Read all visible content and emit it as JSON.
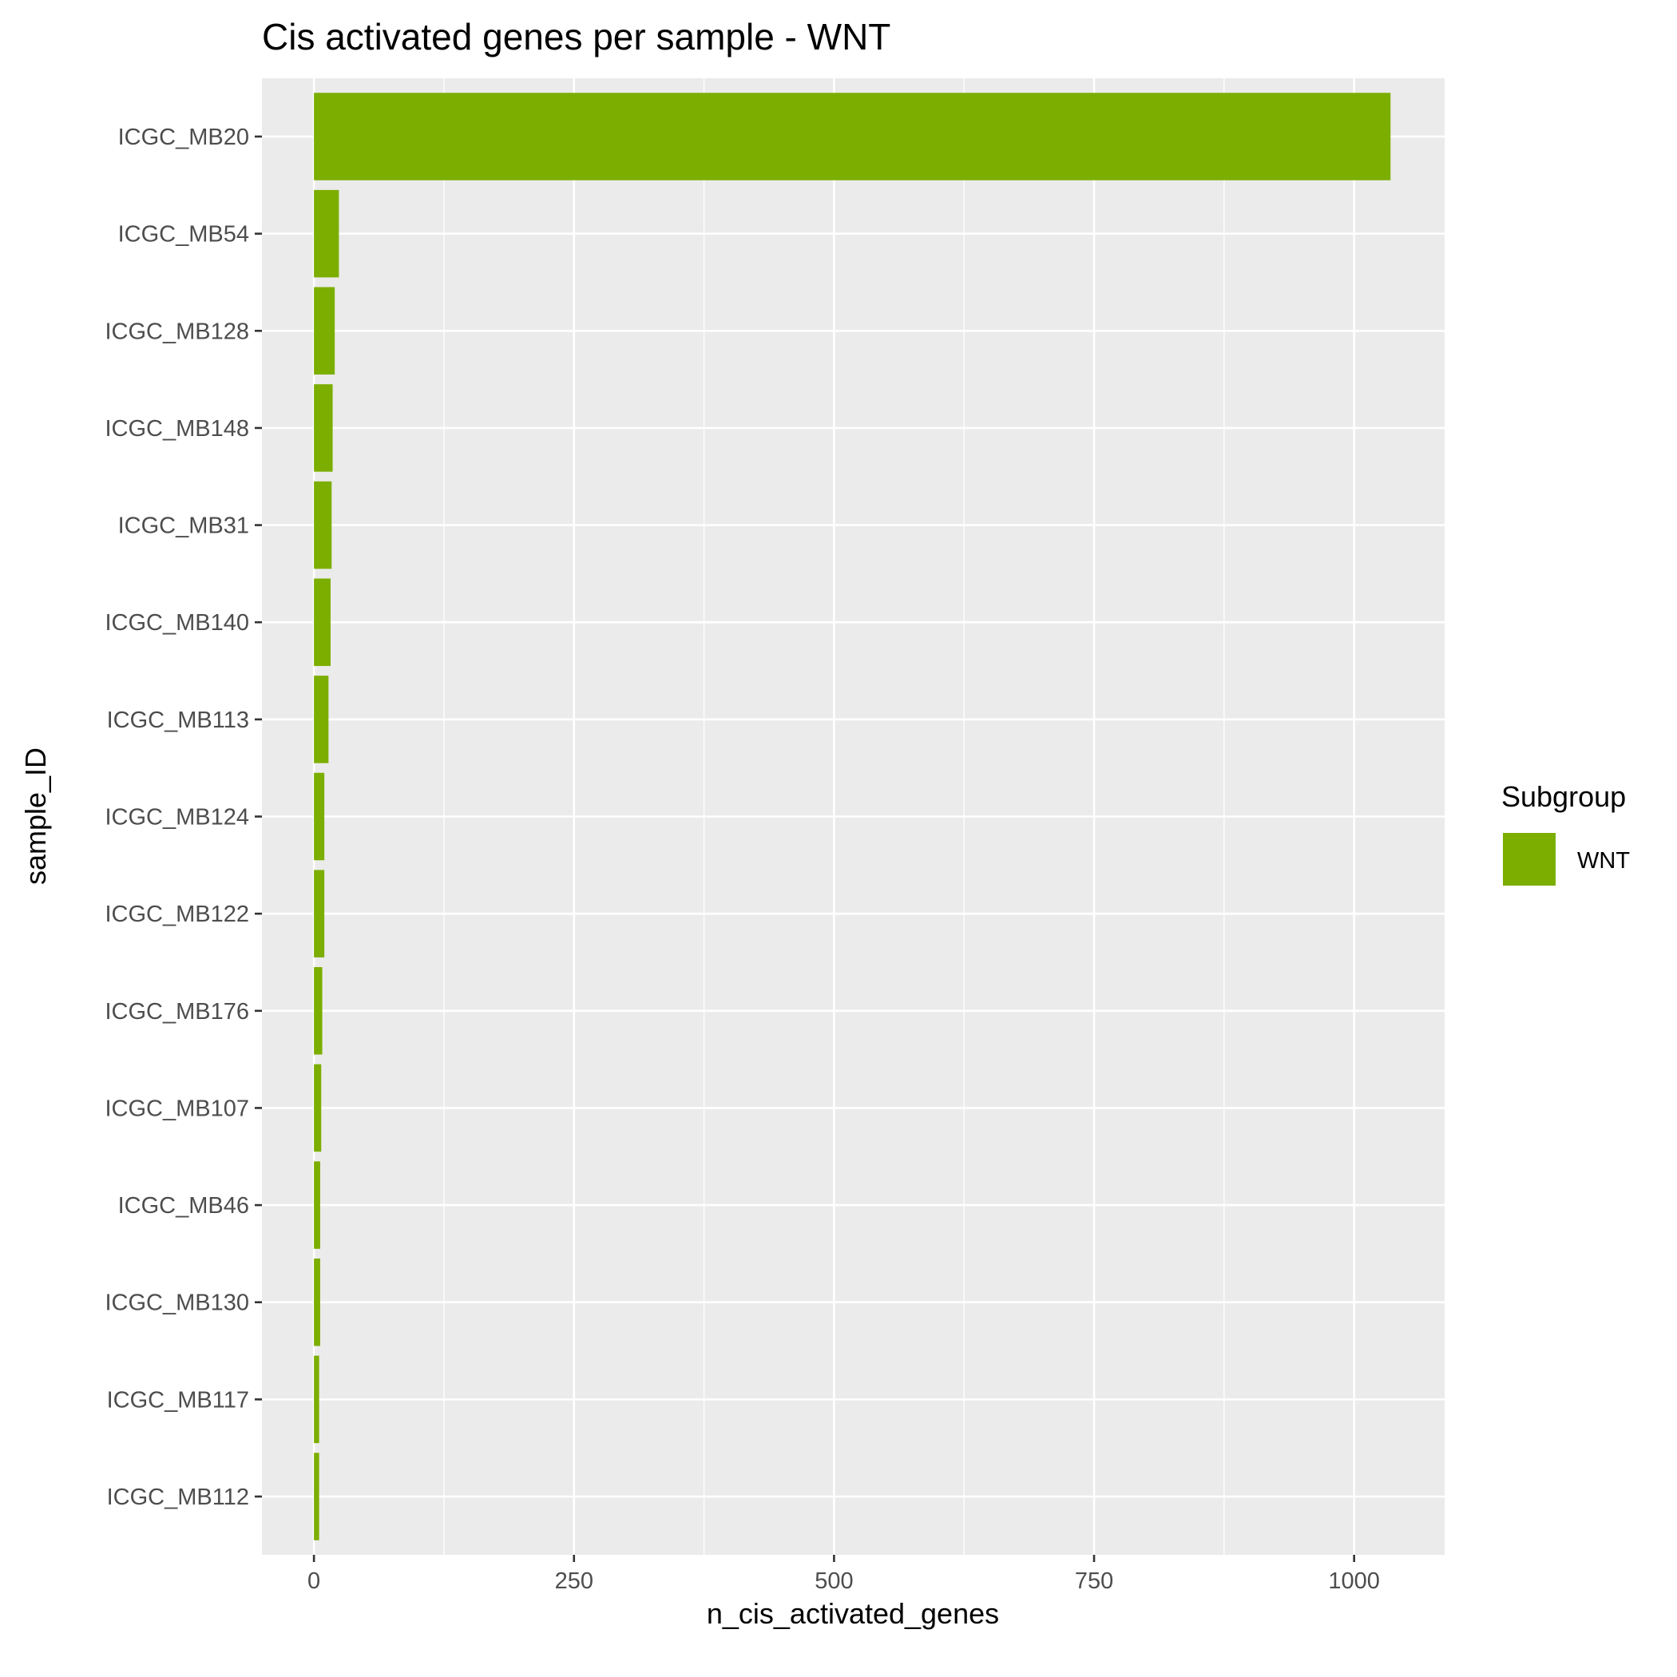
{
  "chart_data": {
    "type": "bar",
    "orientation": "horizontal",
    "title": "Cis activated genes per sample - WNT",
    "xlabel": "n_cis_activated_genes",
    "ylabel": "sample_ID",
    "categories": [
      "ICGC_MB20",
      "ICGC_MB54",
      "ICGC_MB128",
      "ICGC_MB148",
      "ICGC_MB31",
      "ICGC_MB140",
      "ICGC_MB113",
      "ICGC_MB124",
      "ICGC_MB122",
      "ICGC_MB176",
      "ICGC_MB107",
      "ICGC_MB46",
      "ICGC_MB130",
      "ICGC_MB117",
      "ICGC_MB112"
    ],
    "values": [
      1035,
      24,
      20,
      18,
      17,
      16,
      14,
      10,
      10,
      8,
      7,
      6,
      6,
      5,
      5
    ],
    "xlim": [
      -50,
      1087
    ],
    "xticks": [
      0,
      250,
      500,
      750,
      1000
    ],
    "xtick_labels": [
      "0",
      "250",
      "500",
      "750",
      "1000"
    ],
    "grid": true,
    "bar_color": "#7CAE00",
    "panel_background": "#EBEBEB",
    "legend": {
      "title": "Subgroup",
      "position": "right",
      "entries": [
        {
          "label": "WNT",
          "color": "#7CAE00"
        }
      ]
    }
  }
}
